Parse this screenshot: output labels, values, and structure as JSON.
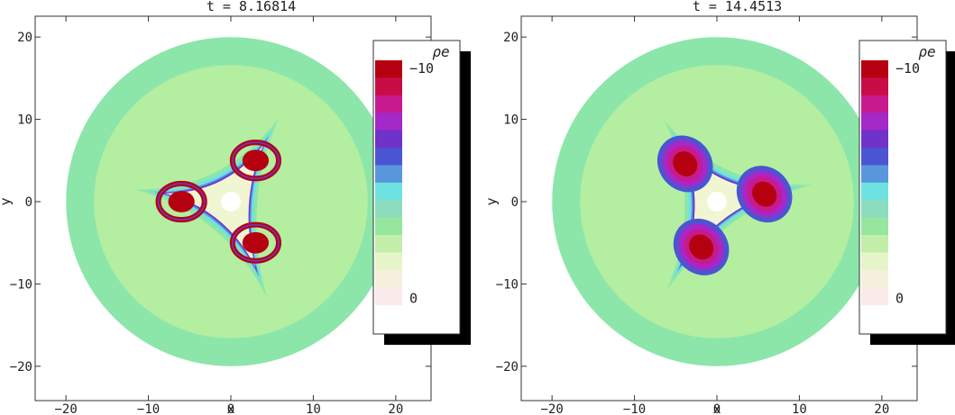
{
  "chart_data": [
    {
      "type": "heatmap",
      "subtype": "filled-contour",
      "title": "t = 8.16814",
      "xlabel": "x",
      "ylabel": "y",
      "xlim": [
        -21,
        21
      ],
      "ylim": [
        -21,
        21
      ],
      "xticks": [
        "−20",
        "−10",
        "0",
        "10",
        "20"
      ],
      "yticks": [
        "20",
        "10",
        "0",
        "−10",
        "−20"
      ],
      "grid": false,
      "domain_radius": 20,
      "legend": {
        "title": "ρe",
        "placement": "right",
        "top_label": "−10",
        "bottom_label": "0",
        "range": [
          -10,
          0
        ]
      },
      "vortex_centers": [
        [
          3,
          5
        ],
        [
          -6,
          0
        ],
        [
          3,
          -5
        ]
      ],
      "rotation_deg": 0
    },
    {
      "type": "heatmap",
      "subtype": "filled-contour",
      "title": "t = 14.4513",
      "xlabel": "x",
      "ylabel": "y",
      "xlim": [
        -21,
        21
      ],
      "ylim": [
        -21,
        21
      ],
      "xticks": [
        "−20",
        "−10",
        "0",
        "10",
        "20"
      ],
      "yticks": [
        "20",
        "10",
        "0",
        "−10",
        "−20"
      ],
      "grid": false,
      "domain_radius": 20,
      "legend": {
        "title": "ρe",
        "placement": "right",
        "top_label": "−10",
        "bottom_label": "0",
        "range": [
          -10,
          0
        ]
      },
      "vortex_centers": [
        [
          -3,
          5
        ],
        [
          6,
          1
        ],
        [
          -2,
          -5
        ]
      ],
      "rotation_deg": 50
    }
  ],
  "colors": {
    "levels": [
      "#b5000f",
      "#c80d46",
      "#c81a8f",
      "#a528c8",
      "#7032c8",
      "#4b55d2",
      "#5a96dc",
      "#6ee1e1",
      "#8cdcbe",
      "#96e6a0",
      "#c3eeaa",
      "#e6f5c8",
      "#f5f0dc",
      "#faebeb"
    ],
    "outer_disk": "#8ce6aa",
    "middle_ring": "#b4eea0",
    "cyan": "#6ee1e1",
    "cream": "#f0f5d2",
    "dark_red": "#b5000f",
    "purple": "#6a3bd0"
  }
}
